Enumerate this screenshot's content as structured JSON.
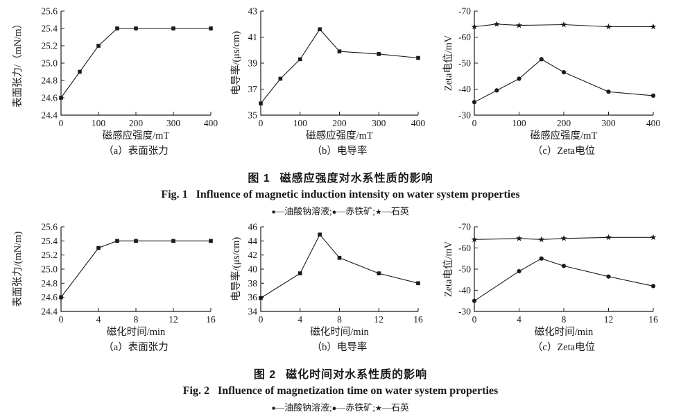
{
  "page": {
    "background": "#ffffff",
    "ink": "#1a1a1a"
  },
  "marker_glyphs": {
    "square": "■",
    "circle": "●",
    "star": "★"
  },
  "legend": {
    "dash": "—",
    "separator": ";",
    "items": [
      {
        "marker": "square",
        "label": "油酸钠溶液"
      },
      {
        "marker": "circle",
        "label": "赤铁矿"
      },
      {
        "marker": "star",
        "label": "石英"
      }
    ]
  },
  "figures": [
    {
      "caption_zh_label": "图 1",
      "caption_zh_text": "磁感应强度对水系性质的影响",
      "caption_en_label": "Fig. 1",
      "caption_en_text": "Influence of magnetic induction intensity on water system properties"
    },
    {
      "caption_zh_label": "图 2",
      "caption_zh_text": "磁化时间对水系性质的影响",
      "caption_en_label": "Fig. 2",
      "caption_en_text": "Influence of magnetization time on water system properties"
    }
  ],
  "chart_data": [
    {
      "type": "line",
      "title": "（a）表面张力",
      "xlabel": "磁感应强度/mT",
      "ylabel": "表面张力/（mN/m）",
      "xlim": [
        0,
        400
      ],
      "ylim": [
        24.4,
        25.6
      ],
      "grid": false,
      "legend_position": "shared-below-figure",
      "xticks": [
        0,
        100,
        200,
        300,
        400
      ],
      "xtick_labels": [
        "0",
        "100",
        "200",
        "300",
        "400"
      ],
      "yticks": [
        24.4,
        24.6,
        24.8,
        25.0,
        25.2,
        25.4,
        25.6
      ],
      "ytick_labels": [
        "24.4",
        "24.6",
        "24.8",
        "25.0",
        "25.2",
        "25.4",
        "25.6"
      ],
      "series": [
        {
          "name": "油酸钠溶液",
          "marker": "square",
          "x": [
            0,
            50,
            100,
            150,
            200,
            300,
            400
          ],
          "y": [
            24.6,
            24.9,
            25.2,
            25.4,
            25.4,
            25.4,
            25.4
          ]
        }
      ]
    },
    {
      "type": "line",
      "title": "（b）电导率",
      "xlabel": "磁感应强度/mT",
      "ylabel": "电导率/(μs/cm)",
      "xlim": [
        0,
        400
      ],
      "ylim": [
        35,
        43
      ],
      "grid": false,
      "legend_position": "shared-below-figure",
      "xticks": [
        0,
        100,
        200,
        300,
        400
      ],
      "xtick_labels": [
        "0",
        "100",
        "200",
        "300",
        "400"
      ],
      "yticks": [
        35,
        37,
        39,
        41,
        43
      ],
      "ytick_labels": [
        "35",
        "37",
        "39",
        "41",
        "43"
      ],
      "series": [
        {
          "name": "油酸钠溶液",
          "marker": "square",
          "x": [
            0,
            50,
            100,
            150,
            200,
            300,
            400
          ],
          "y": [
            35.9,
            37.8,
            39.3,
            41.6,
            39.9,
            39.7,
            39.4
          ]
        }
      ]
    },
    {
      "type": "line",
      "title": "（c）Zeta电位",
      "xlabel": "磁感应强度/mT",
      "ylabel": "Zeta电位/mV",
      "xlim": [
        0,
        400
      ],
      "ylim": [
        -30,
        -70
      ],
      "grid": false,
      "legend_position": "shared-below-figure",
      "xticks": [
        0,
        100,
        200,
        300,
        400
      ],
      "xtick_labels": [
        "0",
        "100",
        "200",
        "300",
        "400"
      ],
      "yticks": [
        -70,
        -60,
        -50,
        -40,
        -30
      ],
      "ytick_labels": [
        "-70",
        "-60",
        "-50",
        "-40",
        "-30"
      ],
      "series": [
        {
          "name": "赤铁矿",
          "marker": "circle",
          "x": [
            0,
            50,
            100,
            150,
            200,
            300,
            400
          ],
          "y": [
            -35,
            -39.5,
            -44,
            -51.5,
            -46.5,
            -39,
            -37.5
          ]
        },
        {
          "name": "石英",
          "marker": "star",
          "x": [
            0,
            50,
            100,
            200,
            300,
            400
          ],
          "y": [
            -64,
            -65,
            -64.5,
            -64.8,
            -64,
            -64
          ]
        }
      ]
    },
    {
      "type": "line",
      "title": "（a）表面张力",
      "xlabel": "磁化时间/min",
      "ylabel": "表面张力/(mN/m)",
      "xlim": [
        0,
        16
      ],
      "ylim": [
        24.4,
        25.6
      ],
      "grid": false,
      "legend_position": "shared-below-figure",
      "xticks": [
        0,
        4,
        8,
        12,
        16
      ],
      "xtick_labels": [
        "0",
        "4",
        "8",
        "12",
        "16"
      ],
      "yticks": [
        24.4,
        24.6,
        24.8,
        25.0,
        25.2,
        25.4,
        25.6
      ],
      "ytick_labels": [
        "24.4",
        "24.6",
        "24.8",
        "25.0",
        "25.2",
        "25.4",
        "25.6"
      ],
      "series": [
        {
          "name": "油酸钠溶液",
          "marker": "square",
          "x": [
            0,
            4,
            6,
            8,
            12,
            16
          ],
          "y": [
            24.6,
            25.3,
            25.4,
            25.4,
            25.4,
            25.4
          ]
        }
      ]
    },
    {
      "type": "line",
      "title": "（b）电导率",
      "xlabel": "磁化时间/min",
      "ylabel": "电导率/(μs/cm)",
      "xlim": [
        0,
        16
      ],
      "ylim": [
        34,
        46
      ],
      "grid": false,
      "legend_position": "shared-below-figure",
      "xticks": [
        0,
        4,
        8,
        12,
        16
      ],
      "xtick_labels": [
        "0",
        "4",
        "8",
        "12",
        "16"
      ],
      "yticks": [
        34,
        36,
        38,
        40,
        42,
        44,
        46
      ],
      "ytick_labels": [
        "34",
        "36",
        "38",
        "40",
        "42",
        "44",
        "46"
      ],
      "series": [
        {
          "name": "油酸钠溶液",
          "marker": "square",
          "x": [
            0,
            4,
            6,
            8,
            12,
            16
          ],
          "y": [
            35.9,
            39.4,
            44.9,
            41.6,
            39.4,
            38.0
          ]
        }
      ]
    },
    {
      "type": "line",
      "title": "（c）Zeta电位",
      "xlabel": "磁化时间/min",
      "ylabel": "Zeta电位/mV",
      "xlim": [
        0,
        16
      ],
      "ylim": [
        -30,
        -70
      ],
      "grid": false,
      "legend_position": "shared-below-figure",
      "xticks": [
        0,
        4,
        8,
        12,
        16
      ],
      "xtick_labels": [
        "0",
        "4",
        "8",
        "12",
        "16"
      ],
      "yticks": [
        -70,
        -60,
        -50,
        -40,
        -30
      ],
      "ytick_labels": [
        "-70",
        "-60",
        "-50",
        "-40",
        "-30"
      ],
      "series": [
        {
          "name": "赤铁矿",
          "marker": "circle",
          "x": [
            0,
            4,
            6,
            8,
            12,
            16
          ],
          "y": [
            -35,
            -49,
            -55,
            -51.5,
            -46.5,
            -42
          ]
        },
        {
          "name": "石英",
          "marker": "star",
          "x": [
            0,
            4,
            6,
            8,
            12,
            16
          ],
          "y": [
            -64,
            -64.5,
            -64,
            -64.5,
            -65,
            -65
          ]
        }
      ]
    }
  ]
}
